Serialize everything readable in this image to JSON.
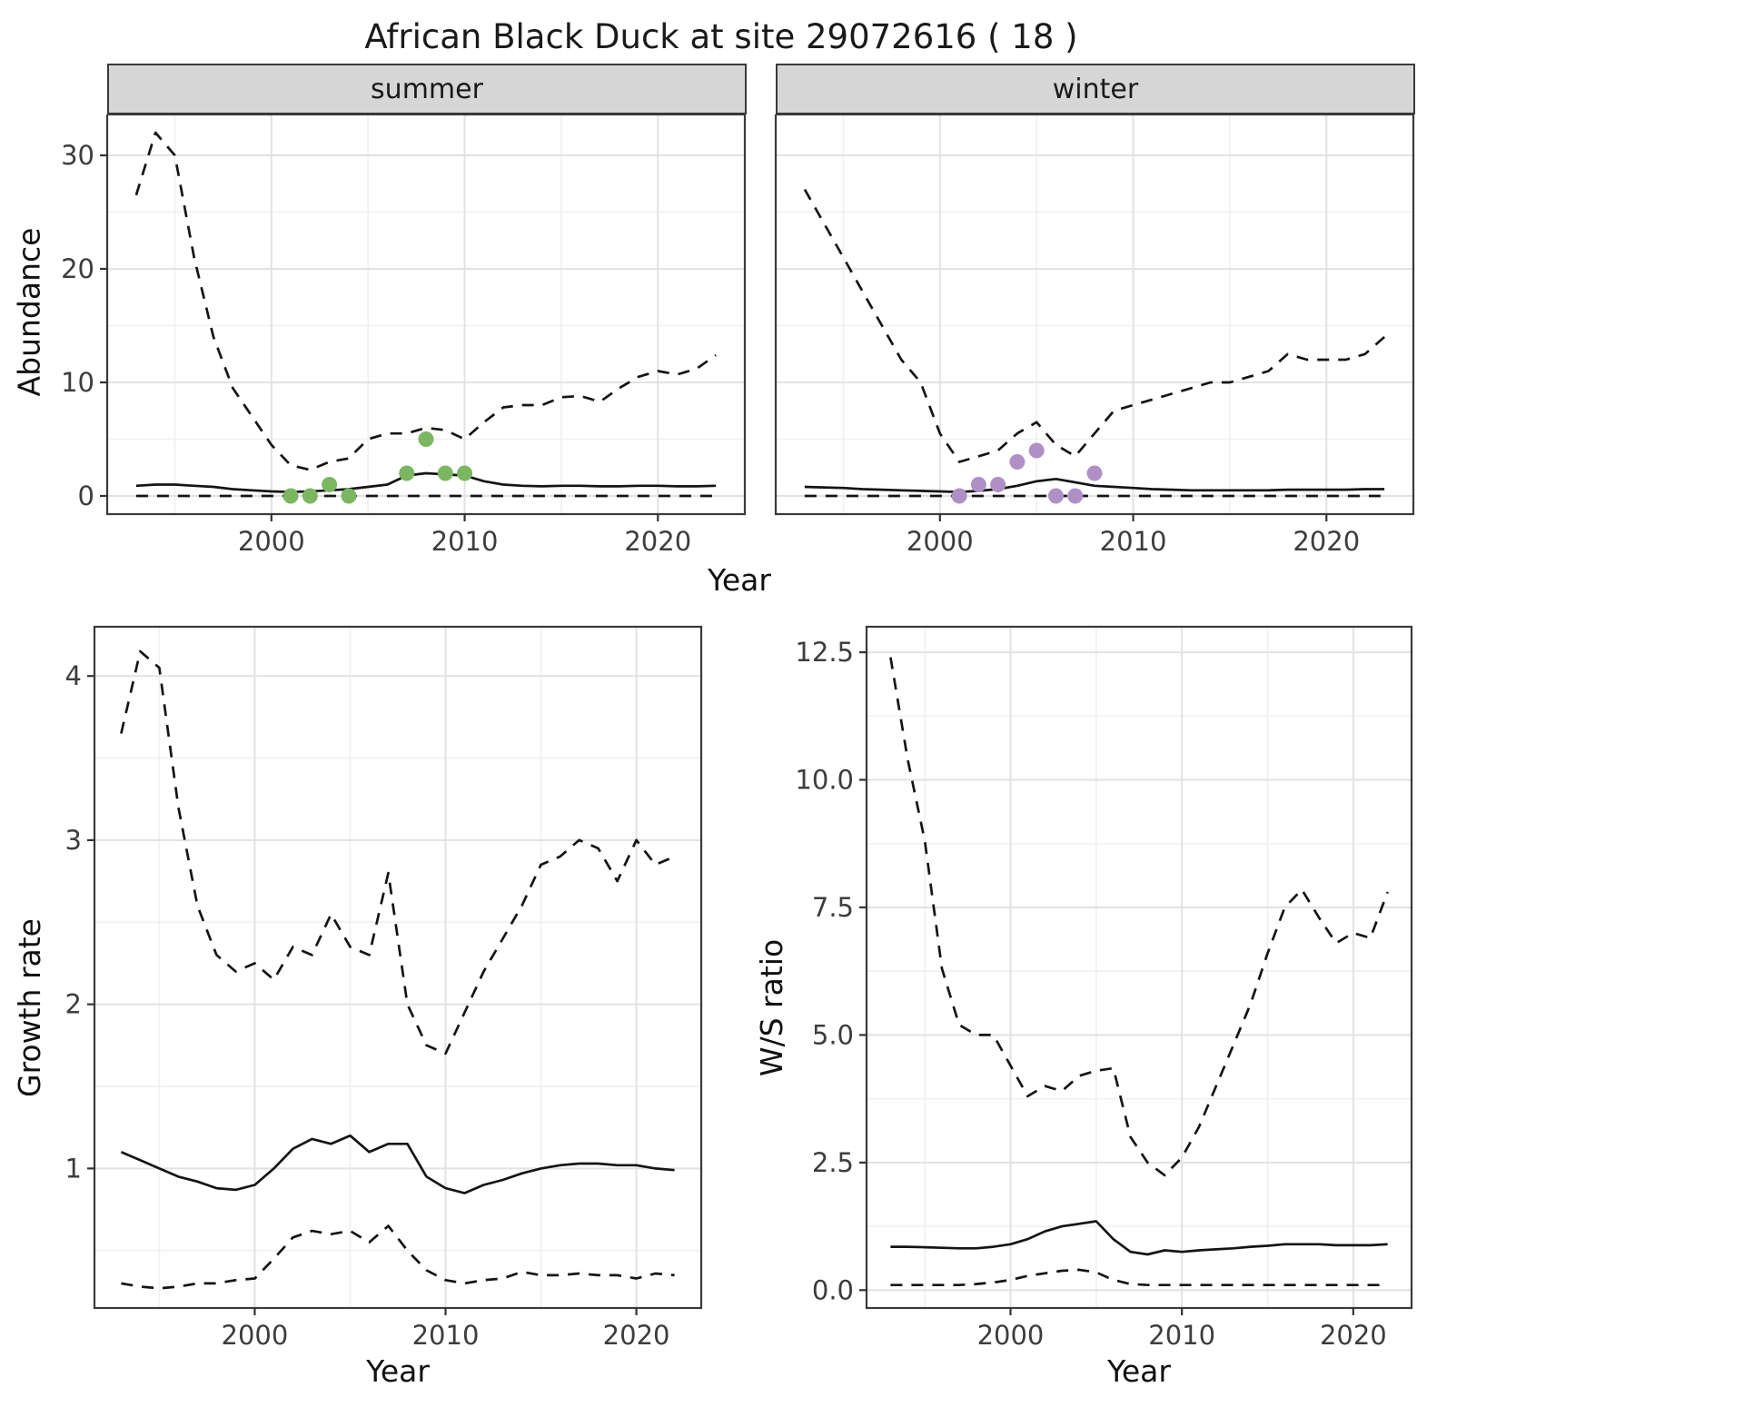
{
  "title": "African Black Duck at site 29072616 ( 18 )",
  "chart_data": [
    {
      "id": "abundance-summer",
      "type": "line",
      "facet": "summer",
      "xlabel": "Year",
      "ylabel": "Abundance",
      "xlim": [
        1991.5,
        2024.5
      ],
      "ylim": [
        -1.6,
        33.6
      ],
      "xticks": [
        2000,
        2010,
        2020
      ],
      "yticks": [
        0,
        10,
        20,
        30
      ],
      "xminor": [
        1995,
        2005,
        2015
      ],
      "yminor": [
        5,
        15,
        25
      ],
      "grid": true,
      "legend": "none",
      "x": [
        1993,
        1994,
        1995,
        1996,
        1997,
        1998,
        1999,
        2000,
        2001,
        2002,
        2003,
        2004,
        2005,
        2006,
        2007,
        2008,
        2009,
        2010,
        2011,
        2012,
        2013,
        2014,
        2015,
        2016,
        2017,
        2018,
        2019,
        2020,
        2021,
        2022,
        2023
      ],
      "series": [
        {
          "name": "upper-ci",
          "style": "dashed",
          "values": [
            26.5,
            32,
            30,
            21,
            14,
            9.5,
            7,
            4.5,
            2.7,
            2.3,
            3,
            3.3,
            5,
            5.5,
            5.5,
            6,
            5.8,
            5,
            6.5,
            7.8,
            8,
            8,
            8.7,
            8.8,
            8.3,
            9.5,
            10.5,
            11,
            10.7,
            11.2,
            12.4
          ]
        },
        {
          "name": "median",
          "style": "solid",
          "values": [
            0.9,
            1.0,
            1.0,
            0.9,
            0.8,
            0.6,
            0.5,
            0.4,
            0.35,
            0.4,
            0.5,
            0.6,
            0.8,
            1.0,
            1.8,
            2.0,
            1.9,
            1.8,
            1.3,
            1.0,
            0.9,
            0.85,
            0.9,
            0.9,
            0.85,
            0.85,
            0.9,
            0.9,
            0.85,
            0.85,
            0.9
          ]
        },
        {
          "name": "lower-ci",
          "style": "dashed",
          "values": [
            0,
            0,
            0,
            0,
            0,
            0,
            0,
            0,
            0,
            0,
            0,
            0,
            0,
            0,
            0,
            0,
            0,
            0,
            0,
            0,
            0,
            0,
            0,
            0,
            0,
            0,
            0,
            0,
            0,
            0,
            0
          ]
        }
      ],
      "points": {
        "name": "summer-observations",
        "color": "#7bb661",
        "xy": [
          [
            2001,
            0
          ],
          [
            2002,
            0
          ],
          [
            2003,
            1
          ],
          [
            2004,
            0
          ],
          [
            2007,
            2
          ],
          [
            2008,
            5
          ],
          [
            2009,
            2
          ],
          [
            2010,
            2
          ]
        ]
      }
    },
    {
      "id": "abundance-winter",
      "type": "line",
      "facet": "winter",
      "xlabel": "Year",
      "ylabel": "Abundance",
      "show_yticks": false,
      "xlim": [
        1991.5,
        2024.5
      ],
      "ylim": [
        -1.6,
        33.6
      ],
      "xticks": [
        2000,
        2010,
        2020
      ],
      "yticks": [
        0,
        10,
        20,
        30
      ],
      "xminor": [
        1995,
        2005,
        2015
      ],
      "yminor": [
        5,
        15,
        25
      ],
      "grid": true,
      "legend": "none",
      "x": [
        1993,
        1994,
        1995,
        1996,
        1997,
        1998,
        1999,
        2000,
        2001,
        2002,
        2003,
        2004,
        2005,
        2006,
        2007,
        2008,
        2009,
        2010,
        2011,
        2012,
        2013,
        2014,
        2015,
        2016,
        2017,
        2018,
        2019,
        2020,
        2021,
        2022,
        2023
      ],
      "series": [
        {
          "name": "upper-ci",
          "style": "dashed",
          "values": [
            27,
            24,
            21,
            18,
            15,
            12,
            10,
            5.5,
            3,
            3.5,
            4,
            5.5,
            6.5,
            4.5,
            3.5,
            5.5,
            7.5,
            8,
            8.5,
            9,
            9.5,
            10,
            10,
            10.5,
            11,
            12.5,
            12,
            12,
            12,
            12.5,
            14
          ]
        },
        {
          "name": "median",
          "style": "solid",
          "values": [
            0.8,
            0.75,
            0.7,
            0.6,
            0.55,
            0.5,
            0.45,
            0.4,
            0.35,
            0.45,
            0.6,
            0.9,
            1.3,
            1.5,
            1.2,
            0.9,
            0.8,
            0.7,
            0.6,
            0.55,
            0.5,
            0.5,
            0.5,
            0.5,
            0.5,
            0.55,
            0.55,
            0.55,
            0.55,
            0.6,
            0.6
          ]
        },
        {
          "name": "lower-ci",
          "style": "dashed",
          "values": [
            0,
            0,
            0,
            0,
            0,
            0,
            0,
            0,
            0,
            0,
            0,
            0,
            0,
            0,
            0,
            0,
            0,
            0,
            0,
            0,
            0,
            0,
            0,
            0,
            0,
            0,
            0,
            0,
            0,
            0,
            0
          ]
        }
      ],
      "points": {
        "name": "winter-observations",
        "color": "#b08fc7",
        "xy": [
          [
            2001,
            0
          ],
          [
            2002,
            1
          ],
          [
            2003,
            1
          ],
          [
            2004,
            3
          ],
          [
            2005,
            4
          ],
          [
            2006,
            0
          ],
          [
            2007,
            0
          ],
          [
            2008,
            2
          ]
        ]
      }
    },
    {
      "id": "growth-rate",
      "type": "line",
      "xlabel": "Year",
      "ylabel": "Growth rate",
      "xlim": [
        1991.6,
        2023.4
      ],
      "ylim": [
        0.15,
        4.3
      ],
      "xticks": [
        2000,
        2010,
        2020
      ],
      "yticks": [
        1,
        2,
        3,
        4
      ],
      "xminor": [
        1995,
        2005,
        2015
      ],
      "yminor": [
        0.5,
        1.5,
        2.5,
        3.5
      ],
      "grid": true,
      "legend": "none",
      "x": [
        1993,
        1994,
        1995,
        1996,
        1997,
        1998,
        1999,
        2000,
        2001,
        2002,
        2003,
        2004,
        2005,
        2006,
        2007,
        2008,
        2009,
        2010,
        2011,
        2012,
        2013,
        2014,
        2015,
        2016,
        2017,
        2018,
        2019,
        2020,
        2021,
        2022
      ],
      "series": [
        {
          "name": "upper-ci",
          "style": "dashed",
          "values": [
            3.65,
            4.15,
            4.05,
            3.2,
            2.6,
            2.3,
            2.2,
            2.25,
            2.15,
            2.35,
            2.3,
            2.55,
            2.35,
            2.3,
            2.8,
            2.0,
            1.75,
            1.7,
            1.95,
            2.2,
            2.4,
            2.6,
            2.85,
            2.9,
            3.0,
            2.95,
            2.75,
            3.0,
            2.85,
            2.9
          ]
        },
        {
          "name": "median",
          "style": "solid",
          "values": [
            1.1,
            1.05,
            1.0,
            0.95,
            0.92,
            0.88,
            0.87,
            0.9,
            1.0,
            1.12,
            1.18,
            1.15,
            1.2,
            1.1,
            1.15,
            1.15,
            0.95,
            0.88,
            0.85,
            0.9,
            0.93,
            0.97,
            1.0,
            1.02,
            1.03,
            1.03,
            1.02,
            1.02,
            1.0,
            0.99
          ]
        },
        {
          "name": "lower-ci",
          "style": "dashed",
          "values": [
            0.3,
            0.28,
            0.27,
            0.28,
            0.3,
            0.3,
            0.32,
            0.33,
            0.45,
            0.58,
            0.62,
            0.6,
            0.62,
            0.55,
            0.65,
            0.5,
            0.38,
            0.32,
            0.3,
            0.32,
            0.33,
            0.37,
            0.35,
            0.35,
            0.36,
            0.35,
            0.35,
            0.33,
            0.36,
            0.35
          ]
        }
      ]
    },
    {
      "id": "ws-ratio",
      "type": "line",
      "xlabel": "Year",
      "ylabel": "W/S ratio",
      "xlim": [
        1991.6,
        2023.4
      ],
      "ylim": [
        -0.35,
        13.0
      ],
      "xticks": [
        2000,
        2010,
        2020
      ],
      "yticks": [
        0,
        2.5,
        5,
        7.5,
        10,
        12.5
      ],
      "ytick_labels": [
        "0.0",
        "2.5",
        "5.0",
        "7.5",
        "10.0",
        "12.5"
      ],
      "xminor": [
        1995,
        2005,
        2015
      ],
      "yminor": [
        1.25,
        3.75,
        6.25,
        8.75,
        11.25
      ],
      "grid": true,
      "legend": "none",
      "x": [
        1993,
        1994,
        1995,
        1996,
        1997,
        1998,
        1999,
        2000,
        2001,
        2002,
        2003,
        2004,
        2005,
        2006,
        2007,
        2008,
        2009,
        2010,
        2011,
        2012,
        2013,
        2014,
        2015,
        2016,
        2017,
        2018,
        2019,
        2020,
        2021,
        2022
      ],
      "series": [
        {
          "name": "upper-ci",
          "style": "dashed",
          "values": [
            12.4,
            10.4,
            8.8,
            6.3,
            5.2,
            5.0,
            5.0,
            4.4,
            3.8,
            4.0,
            3.9,
            4.2,
            4.3,
            4.35,
            3.0,
            2.5,
            2.25,
            2.6,
            3.2,
            4.0,
            4.8,
            5.6,
            6.6,
            7.5,
            7.85,
            7.3,
            6.8,
            7.0,
            6.9,
            7.8
          ]
        },
        {
          "name": "median",
          "style": "solid",
          "values": [
            0.85,
            0.85,
            0.84,
            0.83,
            0.82,
            0.82,
            0.85,
            0.9,
            1.0,
            1.15,
            1.25,
            1.3,
            1.35,
            1.0,
            0.75,
            0.7,
            0.78,
            0.75,
            0.78,
            0.8,
            0.82,
            0.85,
            0.87,
            0.9,
            0.9,
            0.9,
            0.88,
            0.88,
            0.88,
            0.9
          ]
        },
        {
          "name": "lower-ci",
          "style": "dashed",
          "values": [
            0.1,
            0.1,
            0.1,
            0.1,
            0.1,
            0.12,
            0.15,
            0.2,
            0.28,
            0.33,
            0.38,
            0.4,
            0.35,
            0.2,
            0.12,
            0.1,
            0.1,
            0.1,
            0.1,
            0.1,
            0.1,
            0.1,
            0.1,
            0.1,
            0.1,
            0.1,
            0.1,
            0.1,
            0.1,
            0.1
          ]
        }
      ]
    }
  ]
}
